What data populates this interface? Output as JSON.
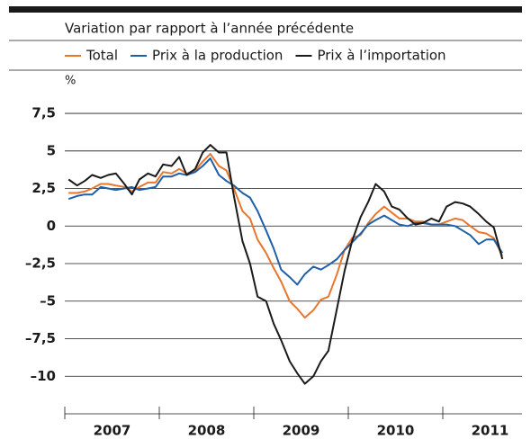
{
  "chart_data": {
    "type": "line",
    "subtitle": "Variation par rapport à l’année précédente",
    "unit": "%",
    "x": [
      2007.04,
      2007.13,
      2007.21,
      2007.29,
      2007.38,
      2007.46,
      2007.54,
      2007.63,
      2007.71,
      2007.79,
      2007.88,
      2007.96,
      2008.04,
      2008.13,
      2008.21,
      2008.29,
      2008.38,
      2008.46,
      2008.54,
      2008.63,
      2008.71,
      2008.79,
      2008.88,
      2008.96,
      2009.04,
      2009.13,
      2009.21,
      2009.29,
      2009.38,
      2009.46,
      2009.54,
      2009.63,
      2009.71,
      2009.79,
      2009.88,
      2009.96,
      2010.04,
      2010.13,
      2010.21,
      2010.29,
      2010.38,
      2010.46,
      2010.54,
      2010.63,
      2010.71,
      2010.79,
      2010.88,
      2010.96,
      2011.04,
      2011.13,
      2011.21,
      2011.29,
      2011.38,
      2011.46,
      2011.54,
      2011.63
    ],
    "series": [
      {
        "name": "Total",
        "color": "#e8762c",
        "values": [
          2.2,
          2.2,
          2.3,
          2.5,
          2.8,
          2.8,
          2.7,
          2.6,
          2.3,
          2.6,
          2.9,
          2.9,
          3.6,
          3.5,
          3.8,
          3.5,
          3.7,
          4.3,
          4.8,
          4.0,
          3.7,
          2.5,
          1.0,
          0.5,
          -0.9,
          -1.8,
          -2.8,
          -3.7,
          -5.0,
          -5.5,
          -6.1,
          -5.6,
          -4.9,
          -4.7,
          -3.2,
          -1.6,
          -0.8,
          -0.6,
          0.2,
          0.8,
          1.3,
          0.9,
          0.5,
          0.5,
          0.3,
          0.3,
          0.1,
          0.1,
          0.3,
          0.5,
          0.4,
          0.0,
          -0.4,
          -0.5,
          -0.8,
          -2.0
        ]
      },
      {
        "name": "Prix à la production",
        "color": "#1f5fa8",
        "values": [
          1.8,
          2.0,
          2.1,
          2.1,
          2.6,
          2.5,
          2.4,
          2.5,
          2.6,
          2.4,
          2.5,
          2.6,
          3.3,
          3.3,
          3.5,
          3.4,
          3.6,
          4.0,
          4.5,
          3.4,
          3.0,
          2.7,
          2.2,
          1.9,
          1.0,
          -0.3,
          -1.5,
          -2.9,
          -3.4,
          -3.9,
          -3.2,
          -2.7,
          -2.9,
          -2.6,
          -2.2,
          -1.6,
          -1.1,
          -0.5,
          0.1,
          0.4,
          0.7,
          0.4,
          0.1,
          0.0,
          0.2,
          0.2,
          0.1,
          0.1,
          0.1,
          0.0,
          -0.3,
          -0.6,
          -1.2,
          -0.9,
          -0.9,
          -1.8
        ]
      },
      {
        "name": "Prix à l’importation",
        "color": "#1a1a1a",
        "values": [
          3.1,
          2.7,
          3.0,
          3.4,
          3.2,
          3.4,
          3.5,
          2.8,
          2.1,
          3.1,
          3.5,
          3.3,
          4.1,
          4.0,
          4.6,
          3.4,
          3.8,
          4.9,
          5.4,
          4.9,
          4.9,
          2.0,
          -1.0,
          -2.5,
          -4.7,
          -5.0,
          -6.5,
          -7.6,
          -9.0,
          -9.8,
          -10.5,
          -10.0,
          -9.0,
          -8.3,
          -5.5,
          -3.0,
          -1.0,
          0.6,
          1.6,
          2.8,
          2.3,
          1.3,
          1.1,
          0.5,
          0.1,
          0.2,
          0.5,
          0.3,
          1.3,
          1.6,
          1.5,
          1.3,
          0.8,
          0.3,
          -0.1,
          -2.2
        ]
      }
    ],
    "xlim": [
      2007,
      2012
    ],
    "xticks": [
      2007,
      2008,
      2009,
      2010,
      2011
    ],
    "ylim": [
      -12.5,
      9
    ],
    "yticks": [
      {
        "value": -10,
        "label": "–10"
      },
      {
        "value": -7.5,
        "label": "–7,5"
      },
      {
        "value": -5,
        "label": "–5"
      },
      {
        "value": -2.5,
        "label": "–2,5"
      },
      0,
      {
        "value": 2.5,
        "label": "2,5"
      },
      5,
      {
        "value": 7.5,
        "label": "7,5"
      }
    ],
    "grid": true
  }
}
